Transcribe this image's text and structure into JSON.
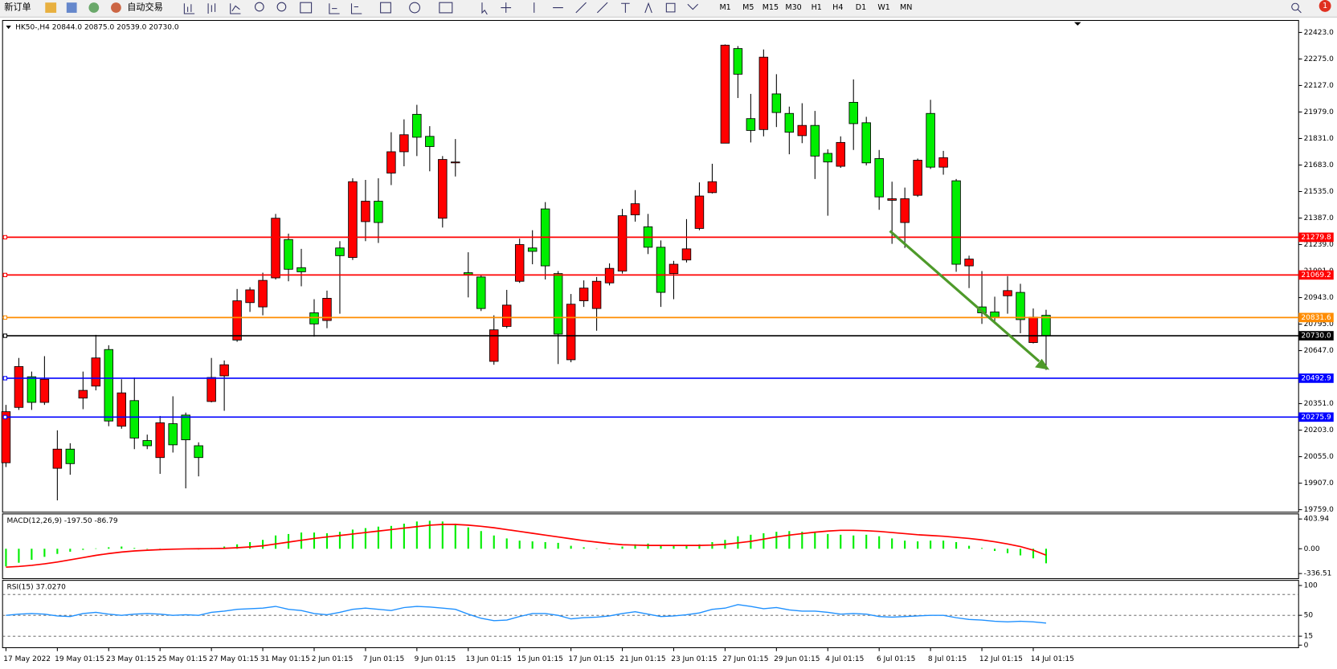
{
  "toolbar": {
    "new_order": "新订单",
    "auto_trading": "自动交易",
    "timeframes": [
      "M1",
      "M5",
      "M15",
      "M30",
      "H1",
      "H4",
      "D1",
      "W1",
      "MN"
    ],
    "notifications": 1
  },
  "chart_data": [
    {
      "type": "candlestick",
      "title": "HK50-,H4  20844.0 20875.0 20539.0 20730.0",
      "categories": [
        "17 May 2022",
        null,
        null,
        null,
        "19 May 01:15",
        null,
        null,
        null,
        "23 May 01:15",
        null,
        null,
        null,
        "25 May 01:15",
        null,
        null,
        null,
        "27 May 01:15",
        null,
        null,
        null,
        "31 May 01:15",
        null,
        null,
        null,
        "2 Jun 01:15",
        null,
        null,
        null,
        "7 Jun 01:15",
        null,
        null,
        null,
        "9 Jun 01:15",
        null,
        null,
        null,
        "13 Jun 01:15",
        null,
        null,
        null,
        "15 Jun 01:15",
        null,
        null,
        null,
        "17 Jun 01:15",
        null,
        null,
        null,
        "21 Jun 01:15",
        null,
        null,
        null,
        "23 Jun 01:15",
        null,
        null,
        null,
        "27 Jun 01:15",
        null,
        null,
        null,
        "29 Jun 01:15",
        null,
        null,
        null,
        "4 Jul 01:15",
        null,
        null,
        null,
        "6 Jul 01:15",
        null,
        null,
        null,
        "8 Jul 01:15",
        null,
        null,
        null,
        "12 Jul 01:15",
        null,
        null,
        null,
        "14 Jul 01:15",
        null
      ],
      "open": [
        20021,
        20330,
        20501,
        20358,
        19990,
        20097,
        20382,
        20449,
        20653,
        20225,
        20368,
        20145,
        20050,
        20239,
        20287,
        20116,
        20363,
        20506,
        20706,
        20915,
        20891,
        21053,
        21267,
        21110,
        20858,
        20815,
        21220,
        21167,
        21367,
        21481,
        21638,
        21757,
        21966,
        21843,
        21386,
        21695,
        21082,
        21058,
        20587,
        20782,
        21034,
        21220,
        21438,
        21077,
        20596,
        20925,
        20882,
        21025,
        21091,
        21405,
        21338,
        21224,
        21077,
        21153,
        21329,
        21529,
        21805,
        22333,
        21942,
        21881,
        22080,
        21971,
        21847,
        21904,
        21748,
        21676,
        22033,
        21919,
        21719,
        21486,
        21362,
        21514,
        21971,
        21671,
        21595,
        21120,
        20891,
        20863,
        20953,
        20972,
        20692,
        20844
      ],
      "high": [
        20344,
        20606,
        20530,
        20616,
        20202,
        20130,
        20530,
        20735,
        20677,
        20487,
        20497,
        20178,
        20282,
        20392,
        20301,
        20135,
        20606,
        20592,
        20991,
        21001,
        21082,
        21410,
        21300,
        21215,
        20934,
        20982,
        21258,
        21609,
        21600,
        21609,
        21866,
        21938,
        22019,
        21900,
        21733,
        21828,
        21196,
        21072,
        20844,
        20986,
        21272,
        21319,
        21476,
        21091,
        20963,
        21039,
        21058,
        21134,
        21438,
        21543,
        21410,
        21262,
        21148,
        21381,
        21586,
        21690,
        22356,
        22347,
        22080,
        22328,
        22190,
        22009,
        22028,
        21985,
        21771,
        21843,
        22161,
        21952,
        21767,
        21590,
        21557,
        21719,
        22047,
        21762,
        21605,
        21177,
        21091,
        20948,
        21063,
        21020,
        20882,
        20875
      ],
      "low": [
        19997,
        20316,
        20316,
        20344,
        19811,
        19954,
        20320,
        20425,
        20225,
        20211,
        20097,
        20097,
        19959,
        20078,
        19878,
        19945,
        20358,
        20311,
        20696,
        20863,
        20844,
        21044,
        21034,
        21006,
        20725,
        20772,
        20853,
        21153,
        21258,
        21248,
        21571,
        21676,
        21733,
        21648,
        21334,
        21619,
        20944,
        20868,
        20568,
        20772,
        21025,
        21129,
        21044,
        20572,
        20582,
        20891,
        20758,
        21011,
        21077,
        21367,
        21186,
        20891,
        20934,
        21139,
        21319,
        21524,
        21805,
        22057,
        21809,
        21843,
        21895,
        21743,
        21805,
        21605,
        21400,
        21667,
        21767,
        21681,
        21433,
        21243,
        21220,
        21505,
        21661,
        21629,
        21087,
        20996,
        20796,
        20796,
        20853,
        20744,
        20687,
        20539
      ],
      "close": [
        20306,
        20558,
        20358,
        20487,
        20097,
        20016,
        20425,
        20606,
        20254,
        20411,
        20159,
        20116,
        20244,
        20121,
        20149,
        20050,
        20497,
        20568,
        20925,
        20986,
        21039,
        21386,
        21101,
        21087,
        20796,
        20939,
        21177,
        21590,
        21481,
        21362,
        21757,
        21852,
        21838,
        21786,
        21714,
        21700,
        21072,
        20882,
        20763,
        20901,
        21239,
        21201,
        21120,
        20739,
        20906,
        20996,
        21034,
        21106,
        21400,
        21467,
        21224,
        20972,
        21129,
        21215,
        21510,
        21590,
        22352,
        22190,
        21876,
        22285,
        21976,
        21866,
        21904,
        21733,
        21700,
        21809,
        21914,
        21695,
        21505,
        21495,
        21495,
        21710,
        21671,
        21724,
        21129,
        21158,
        20858,
        20834,
        20982,
        20820,
        20834,
        20730
      ],
      "up_color": "#ff0000",
      "down_color": "#00ee00",
      "ylim": [
        19745,
        22490
      ],
      "yticks": [
        {
          "value": 22423,
          "label": "22423.0"
        },
        {
          "value": 22275,
          "label": "22275.0"
        },
        {
          "value": 22127,
          "label": "22127.0"
        },
        {
          "value": 21979,
          "label": "21979.0"
        },
        {
          "value": 21831,
          "label": "21831.0"
        },
        {
          "value": 21683,
          "label": "21683.0"
        },
        {
          "value": 21535,
          "label": "21535.0"
        },
        {
          "value": 21387,
          "label": "21387.0"
        },
        {
          "value": 21239,
          "label": "21239.0"
        },
        {
          "value": 21091,
          "label": "21091.0"
        },
        {
          "value": 20943,
          "label": "20943.0"
        },
        {
          "value": 20795,
          "label": "20795.0"
        },
        {
          "value": 20647,
          "label": "20647.0"
        },
        {
          "value": 20499,
          "label": "20499.0"
        },
        {
          "value": 20351,
          "label": "20351.0"
        },
        {
          "value": 20203,
          "label": "20203.0"
        },
        {
          "value": 20055,
          "label": "20055.0"
        },
        {
          "value": 19907,
          "label": "19907.0"
        },
        {
          "value": 19759,
          "label": "19759.0"
        }
      ],
      "levels": [
        {
          "value": 21279.8,
          "label": "21279.8",
          "color": "#ff0000"
        },
        {
          "value": 21069.2,
          "label": "21069.2",
          "color": "#ff0000"
        },
        {
          "value": 20831.6,
          "label": "20831.6",
          "color": "#ff8c00"
        },
        {
          "value": 20730,
          "label": "20730.0",
          "color": "#000000"
        },
        {
          "value": 20492.9,
          "label": "20492.9",
          "color": "#0000ff"
        },
        {
          "value": 20275.9,
          "label": "20275.9",
          "color": "#0000ff"
        }
      ]
    },
    {
      "type": "macd",
      "title": "MACD(12,26,9) -197.50 -86.79",
      "series": [
        {
          "style": "histogram",
          "color": "#00ee00",
          "values": [
            -240,
            -190,
            -150,
            -110,
            -70,
            -40,
            -15,
            5,
            20,
            30,
            10,
            -5,
            -15,
            -10,
            -5,
            -10,
            10,
            30,
            60,
            90,
            120,
            180,
            200,
            220,
            220,
            210,
            230,
            260,
            280,
            300,
            310,
            340,
            370,
            380,
            370,
            340,
            290,
            240,
            180,
            140,
            110,
            100,
            90,
            80,
            40,
            20,
            5,
            0,
            30,
            60,
            70,
            50,
            40,
            40,
            60,
            90,
            120,
            170,
            190,
            210,
            230,
            240,
            230,
            220,
            200,
            190,
            180,
            190,
            170,
            140,
            110,
            100,
            110,
            110,
            90,
            40,
            10,
            -30,
            -60,
            -90,
            -130,
            -197.5
          ]
        },
        {
          "style": "line",
          "color": "#ff0000",
          "values": [
            -250,
            -240,
            -225,
            -205,
            -180,
            -150,
            -120,
            -90,
            -65,
            -45,
            -30,
            -20,
            -12,
            -6,
            -2,
            0,
            2,
            6,
            14,
            25,
            40,
            65,
            90,
            115,
            140,
            160,
            180,
            200,
            220,
            240,
            260,
            280,
            300,
            320,
            330,
            330,
            320,
            305,
            285,
            260,
            235,
            210,
            185,
            160,
            135,
            110,
            90,
            70,
            55,
            50,
            45,
            45,
            45,
            45,
            45,
            50,
            60,
            80,
            100,
            130,
            160,
            185,
            205,
            225,
            240,
            250,
            250,
            245,
            235,
            220,
            205,
            190,
            180,
            170,
            155,
            140,
            120,
            95,
            65,
            30,
            -20,
            -86.79
          ]
        }
      ],
      "ylim": [
        -406,
        473
      ],
      "yticks": [
        403.94,
        {
          "value": 0,
          "label": "0.00"
        },
        -336.51
      ]
    },
    {
      "type": "line",
      "title": "RSI(15) 37.0270",
      "series": [
        {
          "color": "#1e90ff",
          "values": [
            50,
            52,
            53,
            52,
            49,
            48,
            53,
            55,
            52,
            50,
            52,
            53,
            52,
            50,
            51,
            50,
            55,
            57,
            60,
            61,
            62,
            65,
            60,
            58,
            53,
            51,
            55,
            60,
            62,
            60,
            58,
            63,
            65,
            64,
            62,
            60,
            52,
            45,
            41,
            42,
            48,
            53,
            53,
            50,
            44,
            46,
            47,
            49,
            53,
            56,
            52,
            48,
            49,
            51,
            54,
            60,
            62,
            68,
            65,
            61,
            63,
            59,
            57,
            57,
            55,
            52,
            53,
            52,
            48,
            47,
            48,
            49,
            50,
            50,
            46,
            43,
            42,
            40,
            39,
            40,
            39,
            37.027
          ]
        }
      ],
      "ylim": [
        -4.3,
        108.6
      ],
      "yticks": [
        100,
        50,
        15,
        0
      ],
      "levels": [
        85,
        50,
        15
      ]
    }
  ]
}
